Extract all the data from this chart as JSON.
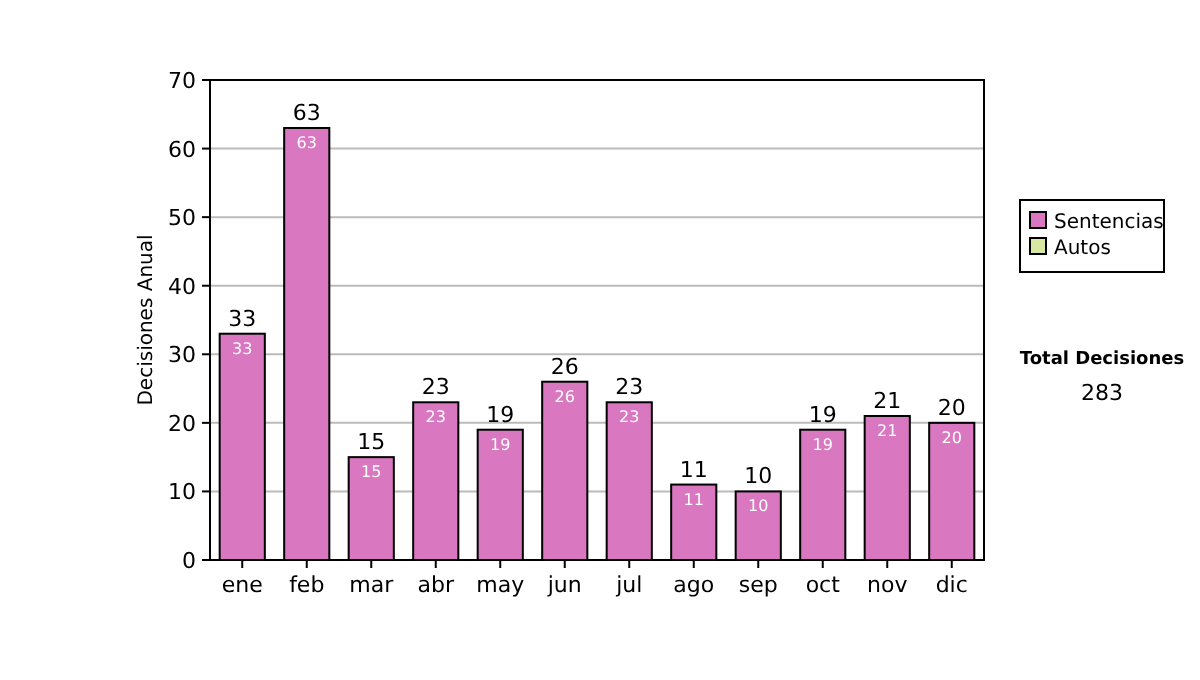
{
  "chart_data": {
    "type": "bar",
    "ylabel": "Decisiones Anual",
    "categories": [
      "ene",
      "feb",
      "mar",
      "abr",
      "may",
      "jun",
      "jul",
      "ago",
      "sep",
      "oct",
      "nov",
      "dic"
    ],
    "series": [
      {
        "name": "Sentencias",
        "color": "#d977c0",
        "values": [
          33,
          63,
          15,
          23,
          19,
          26,
          23,
          11,
          10,
          19,
          21,
          20
        ],
        "value_labels": [
          "33",
          "63",
          "15",
          "23",
          "19",
          "26",
          "23",
          "11",
          "10",
          "19",
          "21",
          "20"
        ]
      },
      {
        "name": "Autos",
        "color": "#d8e8a0",
        "values": [
          0,
          0,
          0,
          0,
          0,
          0,
          0,
          0,
          0,
          0,
          0,
          0
        ]
      }
    ],
    "stacked": true,
    "totals": [
      "33",
      "63",
      "15",
      "23",
      "19",
      "26",
      "23",
      "11",
      "10",
      "19",
      "21",
      "20"
    ],
    "ylim": [
      0,
      70
    ],
    "yticks": [
      0,
      10,
      20,
      30,
      40,
      50,
      60,
      70
    ],
    "grid": "y",
    "legend": "right",
    "annotations": [
      "Total Decisiones",
      "283"
    ]
  }
}
